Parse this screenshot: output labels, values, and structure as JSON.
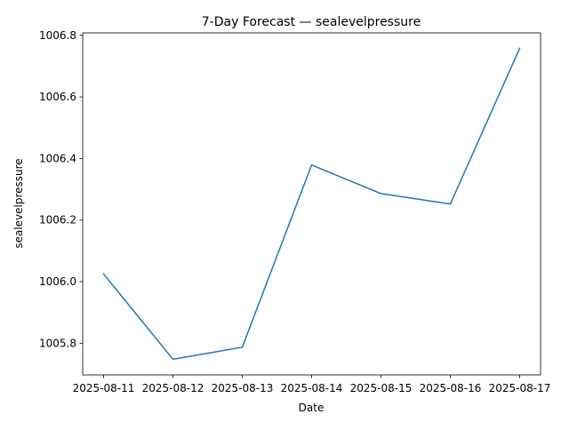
{
  "chart_data": {
    "type": "line",
    "title": "7-Day Forecast — sealevelpressure",
    "xlabel": "Date",
    "ylabel": "sealevelpressure",
    "x": [
      "2025-08-11",
      "2025-08-12",
      "2025-08-13",
      "2025-08-14",
      "2025-08-15",
      "2025-08-16",
      "2025-08-17"
    ],
    "series": [
      {
        "values": [
          1006.025,
          1005.748,
          1005.787,
          1006.379,
          1006.286,
          1006.252,
          1006.758
        ],
        "color": "#1f77b4"
      }
    ],
    "yticks": [
      "1005.8",
      "1006.0",
      "1006.2",
      "1006.4",
      "1006.6",
      "1006.8"
    ],
    "ytick_values": [
      1005.8,
      1006.0,
      1006.2,
      1006.4,
      1006.6,
      1006.8
    ],
    "ylim": [
      1005.697,
      1006.808
    ],
    "grid": false,
    "legend": "none"
  }
}
